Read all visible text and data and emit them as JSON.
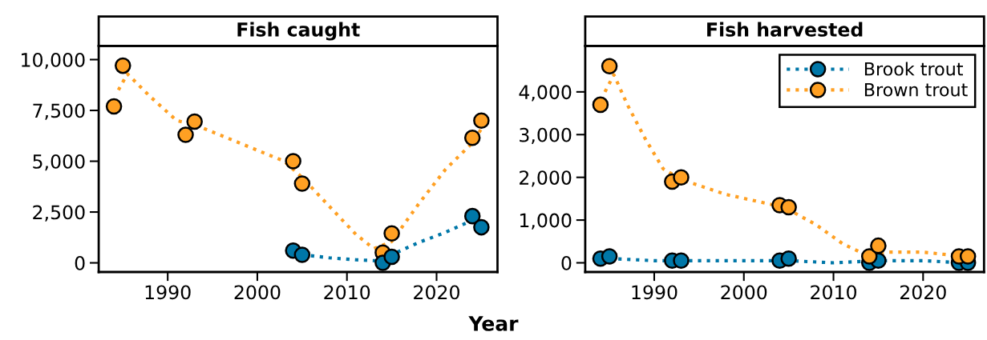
{
  "chart_data": [
    {
      "type": "scatter",
      "title": "Fish caught",
      "xlabel": "Year",
      "xlim": [
        1982.3,
        2026.8
      ],
      "xticks": [
        1990,
        2000,
        2010,
        2020
      ],
      "ylim": [
        -450,
        10674
      ],
      "yticks": [
        {
          "value": 0,
          "label": "0"
        },
        {
          "value": 2500,
          "label": "2,500"
        },
        {
          "value": 5000,
          "label": "5,000"
        },
        {
          "value": 7500,
          "label": "7,500"
        },
        {
          "value": 10000,
          "label": "10,000"
        }
      ],
      "grid": false,
      "legend": false,
      "series": [
        {
          "type": "line",
          "line_style": "dotted",
          "color": "#ffa023",
          "x": [
            1984.5,
            1985.5,
            1988,
            1991,
            1993,
            1998,
            2003,
            2005,
            2008,
            2011,
            2013,
            2015,
            2018,
            2021,
            2024,
            2025
          ],
          "values": [
            8500,
            9300,
            8200,
            7000,
            6800,
            5900,
            5000,
            4200,
            2800,
            1400,
            700,
            1050,
            2900,
            4600,
            5900,
            6600
          ]
        },
        {
          "type": "line",
          "line_style": "dotted",
          "color": "#0077a8",
          "x": [
            2005,
            2008,
            2011,
            2013.5,
            2015,
            2018,
            2021,
            2024,
            2024.7
          ],
          "values": [
            400,
            250,
            150,
            100,
            400,
            1000,
            1500,
            2100,
            2300
          ]
        },
        {
          "marker": "circle",
          "color": "#ffa023",
          "x": [
            1984,
            1985,
            1992,
            1993,
            2004,
            2005,
            2014,
            2015,
            2024,
            2025
          ],
          "values": [
            7700,
            9700,
            6300,
            6950,
            5000,
            3900,
            500,
            1450,
            6150,
            7000
          ]
        },
        {
          "marker": "circle",
          "color": "#0077a8",
          "x": [
            2004,
            2005,
            2014,
            2015,
            2024,
            2025
          ],
          "values": [
            600,
            400,
            0,
            300,
            2300,
            1750
          ]
        }
      ]
    },
    {
      "type": "scatter",
      "title": "Fish harvested",
      "xlim": [
        1982.3,
        2026.8
      ],
      "xticks": [
        1990,
        2000,
        2010,
        2020
      ],
      "ylim": [
        -215,
        5076
      ],
      "yticks": [
        {
          "value": 0,
          "label": "0"
        },
        {
          "value": 1000,
          "label": "1,000"
        },
        {
          "value": 2000,
          "label": "2,000"
        },
        {
          "value": 3000,
          "label": "3,000"
        },
        {
          "value": 4000,
          "label": "4,000"
        }
      ],
      "grid": false,
      "legend": "top right",
      "series": [
        {
          "type": "line",
          "line_style": "dotted",
          "color": "#ffa023",
          "x": [
            1984.5,
            1985.5,
            1987,
            1989,
            1991,
            1993,
            1998,
            2004.5,
            2008,
            2011,
            2013.5,
            2016,
            2020,
            2024.5
          ],
          "values": [
            4000,
            4400,
            3700,
            2900,
            2200,
            1950,
            1600,
            1300,
            900,
            450,
            200,
            250,
            250,
            150
          ]
        },
        {
          "type": "line",
          "line_style": "dotted",
          "color": "#0077a8",
          "x": [
            1985,
            1990,
            1995,
            2000,
            2005,
            2010,
            2015,
            2020,
            2024.5
          ],
          "values": [
            100,
            50,
            50,
            50,
            50,
            0,
            50,
            50,
            0
          ]
        },
        {
          "name": "Brook trout",
          "marker": "circle",
          "line_style": "dotted",
          "color": "#0077a8",
          "x": [
            1984,
            1985,
            1992,
            1993,
            2004,
            2005,
            2014,
            2015,
            2024,
            2025
          ],
          "values": [
            100,
            150,
            50,
            50,
            50,
            100,
            0,
            50,
            0,
            0
          ]
        },
        {
          "name": "Brown trout",
          "marker": "circle",
          "line_style": "dotted",
          "color": "#ffa023",
          "x": [
            1984,
            1985,
            1992,
            1993,
            2004,
            2005,
            2014,
            2015,
            2024,
            2025
          ],
          "values": [
            3700,
            4600,
            1900,
            2000,
            1350,
            1300,
            150,
            400,
            150,
            150
          ]
        }
      ]
    }
  ]
}
